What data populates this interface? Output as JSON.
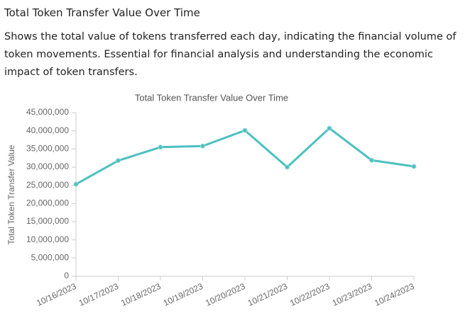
{
  "header": {
    "title": "Total Token Transfer Value Over Time",
    "description": "Shows the total value of tokens transferred each day, indicating the financial volume of token movements. Essential for financial analysis and understanding the economic impact of token transfers."
  },
  "chart_data": {
    "type": "line",
    "title": "Total Token Transfer Value Over Time",
    "y_label": "Total Token Transfer Value",
    "categories": [
      "10/16/2023",
      "10/17/2023",
      "10/18/2023",
      "10/19/2023",
      "10/20/2023",
      "10/21/2023",
      "10/22/2023",
      "10/23/2023",
      "10/24/2023"
    ],
    "values": [
      25300000,
      31800000,
      35500000,
      35800000,
      40100000,
      30000000,
      40700000,
      31900000,
      30200000
    ],
    "color": "#4bc0c0",
    "ylim": [
      0,
      45000000
    ],
    "yticks": [
      0,
      {
        "value": 5000000,
        "label": "5,000,000"
      },
      {
        "value": 10000000,
        "label": "10,000,000"
      },
      {
        "value": 15000000,
        "label": "15,000,000"
      },
      {
        "value": 20000000,
        "label": "20,000,000"
      },
      {
        "value": 25000000,
        "label": "25,000,000"
      },
      {
        "value": 30000000,
        "label": "30,000,000"
      },
      {
        "value": 35000000,
        "label": "35,000,000"
      },
      {
        "value": 40000000,
        "label": "40,000,000"
      },
      {
        "value": 45000000,
        "label": "45,000,000"
      }
    ],
    "grid": false
  }
}
